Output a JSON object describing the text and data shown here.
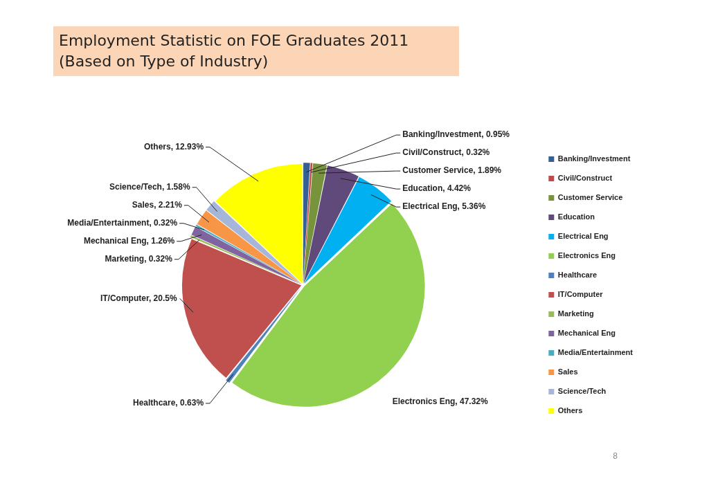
{
  "chart_data": {
    "type": "pie",
    "title": "Employment Statistic on FOE Graduates 2011\n(Based on Type of Industry)",
    "categories": [
      "Banking/Investment",
      "Civil/Construct",
      "Customer Service",
      "Education",
      "Electrical Eng",
      "Electronics Eng",
      "Healthcare",
      "IT/Computer",
      "Marketing",
      "Mechanical Eng",
      "Media/Entertainment",
      "Sales",
      "Science/Tech",
      "Others"
    ],
    "values": [
      0.95,
      0.32,
      1.89,
      4.42,
      5.36,
      47.32,
      0.63,
      20.5,
      0.32,
      1.26,
      0.32,
      2.21,
      1.58,
      12.93
    ],
    "value_labels": [
      "Banking/Investment, 0.95%",
      "Civil/Construct, 0.32%",
      "Customer Service, 1.89%",
      "Education, 4.42%",
      "Electrical Eng, 5.36%",
      "Electronics Eng, 47.32%",
      "Healthcare, 0.63%",
      "IT/Computer, 20.5%",
      "Marketing, 0.32%",
      "Mechanical Eng, 1.26%",
      "Media/Entertainment, 0.32%",
      "Sales, 2.21%",
      "Science/Tech, 1.58%",
      "Others, 12.93%"
    ],
    "colors": [
      "#376092",
      "#be4b48",
      "#77933c",
      "#604a7b",
      "#00b0f0",
      "#92d050",
      "#4f81bd",
      "#c0504d",
      "#9bbb59",
      "#8064a2",
      "#4bacc6",
      "#f79646",
      "#a6b6d8",
      "#ffff00"
    ],
    "legend": "right",
    "annotations": [
      "8"
    ]
  }
}
